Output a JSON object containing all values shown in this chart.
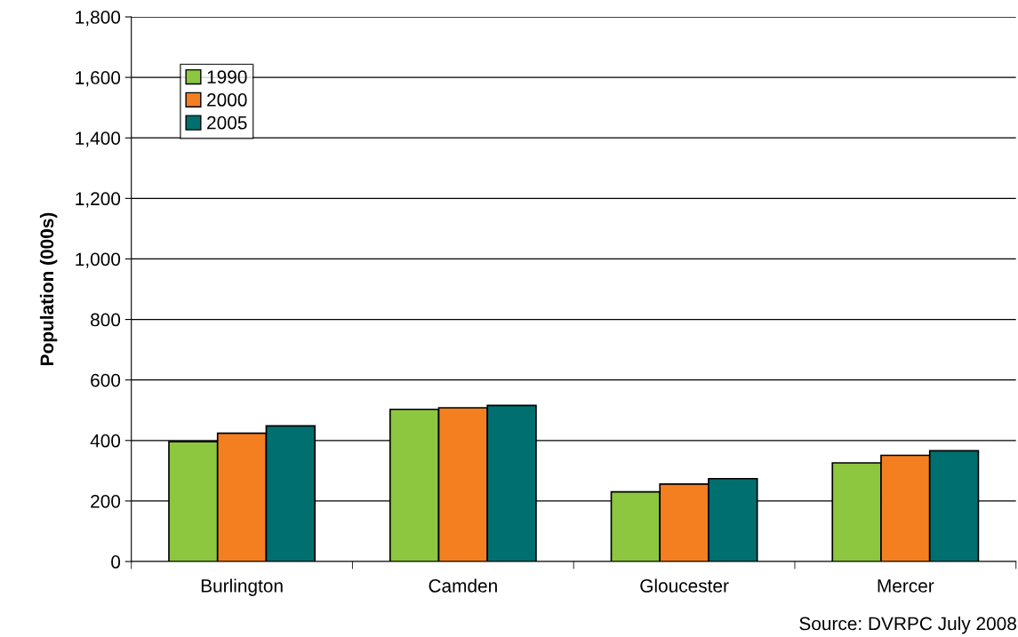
{
  "chart_data": {
    "type": "bar",
    "ylabel": "Population (000s)",
    "categories": [
      "Burlington",
      "Camden",
      "Gloucester",
      "Mercer"
    ],
    "series": [
      {
        "name": "1990",
        "color": "#8dc63f",
        "values": [
          396,
          503,
          230,
          326
        ]
      },
      {
        "name": "2000",
        "color": "#f47f20",
        "values": [
          424,
          508,
          256,
          351
        ]
      },
      {
        "name": "2005",
        "color": "#006f6f",
        "values": [
          448,
          516,
          274,
          366
        ]
      }
    ],
    "ylim": [
      0,
      1800
    ],
    "yticks": [
      0,
      {
        "value": 200,
        "label": "200"
      },
      {
        "value": 400,
        "label": "400"
      },
      {
        "value": 600,
        "label": "600"
      },
      {
        "value": 800,
        "label": "800"
      },
      {
        "value": 1000,
        "label": "1,000"
      },
      {
        "value": 1200,
        "label": "1,200"
      },
      {
        "value": 1400,
        "label": "1,400"
      },
      {
        "value": 1600,
        "label": "1,600"
      },
      {
        "value": 1800,
        "label": "1,800"
      }
    ],
    "grid": "y",
    "legend": "top left",
    "annotations": [
      "Source: DVRPC July 2008"
    ]
  }
}
